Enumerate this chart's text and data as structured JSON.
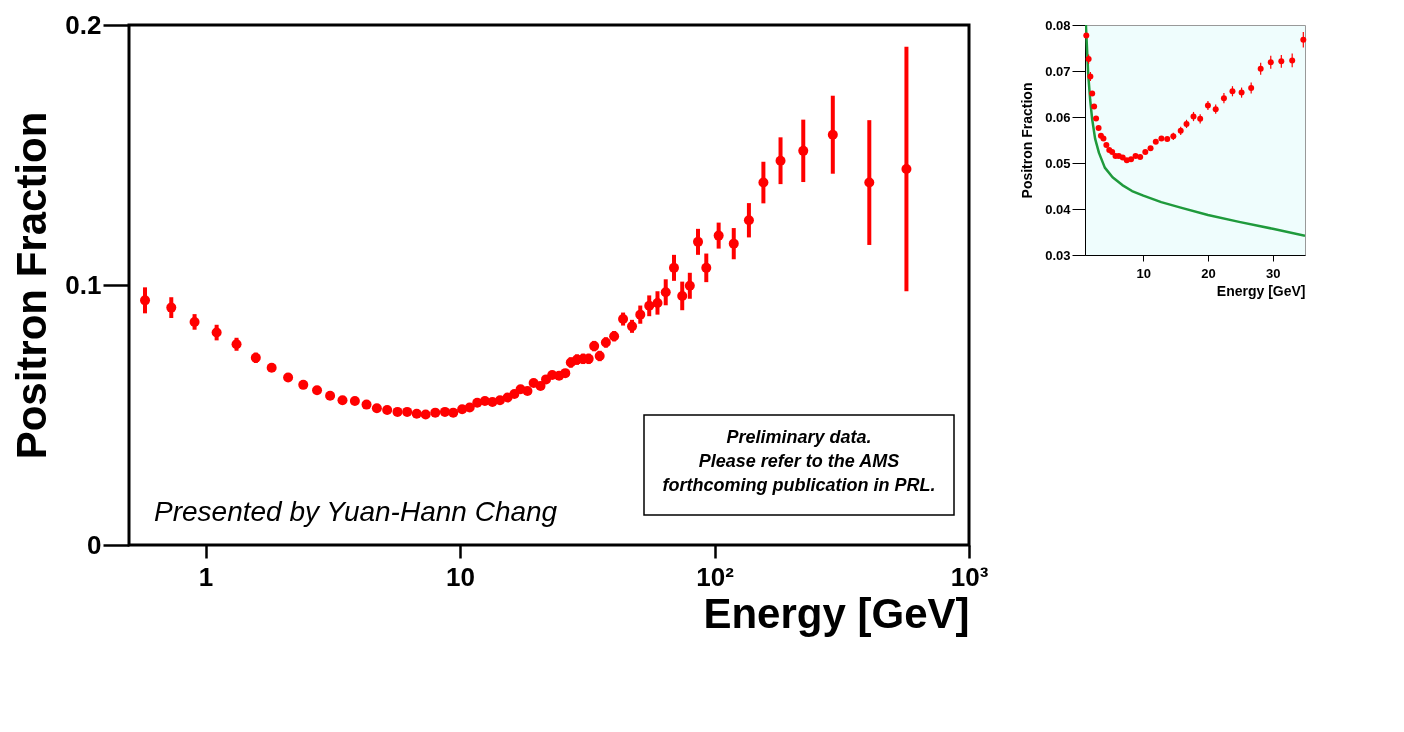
{
  "chart_data": [
    {
      "type": "scatter",
      "xlabel": "Energy [GeV]",
      "ylabel": "Positron Fraction",
      "log": "x",
      "marker": "circle",
      "grid": false,
      "xlim": [
        0.5,
        1000
      ],
      "ylim": [
        0,
        0.2
      ],
      "xticks": [
        1,
        10,
        {
          "value": 100,
          "label": "10²"
        },
        {
          "value": 1000,
          "label": "10³"
        }
      ],
      "yticks": [
        0,
        0.1,
        0.2
      ],
      "series": [
        {
          "type": "scatter",
          "color": "#ff0000",
          "x": [
            0.578,
            0.733,
            0.905,
            1.105,
            1.323,
            1.575,
            1.818,
            2.11,
            2.42,
            2.741,
            3.085,
            3.451,
            3.86,
            4.29,
            4.71,
            5.17,
            5.677,
            6.195,
            6.755,
            7.325,
            7.99,
            8.72,
            9.4,
            10.19,
            10.91,
            11.68,
            12.52,
            13.4,
            14.35,
            15.37,
            16.35,
            17.29,
            18.4,
            19.46,
            20.71,
            21.77,
            23.02,
            24.5,
            25.91,
            27.23,
            28.81,
            30.46,
            32.02,
            33.65,
            35.37,
            37.41,
            40.31,
            43.71,
            47.4,
            51.07,
            55.38,
            59.68,
            64.3,
            69.28,
            74.65,
            79.96,
            86.12,
            92.81,
            103.8,
            119.0,
            136.5,
            155.6,
            181.7,
            223.2,
            291.6,
            405.7,
            567.7
          ],
          "values": [
            0.0941,
            0.0913,
            0.0858,
            0.0817,
            0.0772,
            0.072,
            0.0682,
            0.0644,
            0.0616,
            0.0595,
            0.0574,
            0.0557,
            0.0554,
            0.054,
            0.0526,
            0.0519,
            0.0512,
            0.0512,
            0.0505,
            0.0502,
            0.0509,
            0.0512,
            0.0509,
            0.0522,
            0.0529,
            0.0547,
            0.0554,
            0.055,
            0.0557,
            0.0567,
            0.0581,
            0.0599,
            0.0592,
            0.0623,
            0.0612,
            0.0637,
            0.0654,
            0.0651,
            0.0661,
            0.0702,
            0.0713,
            0.0716,
            0.0716,
            0.0765,
            0.0727,
            0.0779,
            0.0803,
            0.0869,
            0.0841,
            0.0886,
            0.092,
            0.0931,
            0.0972,
            0.1066,
            0.0958,
            0.0997,
            0.1166,
            0.1066,
            0.119,
            0.1159,
            0.1249,
            0.1394,
            0.1478,
            0.1516,
            0.1578,
            0.1394,
            0.1446
          ],
          "errors": [
            0.005,
            0.004,
            0.003,
            0.003,
            0.0025,
            0.002,
            null,
            null,
            null,
            null,
            null,
            null,
            null,
            null,
            null,
            null,
            null,
            null,
            null,
            null,
            null,
            null,
            null,
            null,
            null,
            null,
            null,
            null,
            null,
            null,
            null,
            null,
            null,
            null,
            null,
            null,
            null,
            null,
            null,
            0.002,
            0.002,
            0.002,
            0.002,
            0.002,
            0.002,
            0.002,
            0.002,
            0.0025,
            0.0025,
            0.0035,
            0.004,
            0.0045,
            0.005,
            0.005,
            0.0055,
            0.005,
            0.005,
            0.0055,
            0.005,
            0.006,
            0.0066,
            0.008,
            0.009,
            0.012,
            0.015,
            0.024,
            0.047
          ]
        }
      ],
      "annotations": [
        "Presented by Yuan-Hann Chang",
        "Preliminary data.\nPlease refer to the AMS\nforthcoming publication in PRL."
      ]
    },
    {
      "type": "scatter",
      "xlabel": "Energy [GeV]",
      "ylabel": "Positron Fraction",
      "marker": "circle",
      "grid": false,
      "xlim": [
        1,
        35
      ],
      "ylim": [
        0.03,
        0.08
      ],
      "xticks": [
        10,
        20,
        30
      ],
      "yticks": [
        0.03,
        0.04,
        0.05,
        0.06,
        0.07,
        0.08
      ],
      "series": [
        {
          "type": "scatter",
          "color": "#ff0000",
          "x": [
            1.2,
            1.56,
            1.83,
            2.11,
            2.41,
            2.71,
            3.1,
            3.46,
            3.85,
            4.3,
            4.75,
            5.2,
            5.71,
            6.23,
            6.83,
            7.46,
            8.12,
            8.81,
            9.53,
            10.32,
            11.13,
            11.94,
            12.81,
            13.71,
            14.65,
            15.79,
            16.69,
            17.77,
            18.8,
            20.0,
            21.2,
            22.47,
            23.79,
            25.2,
            26.68,
            28.15,
            29.71,
            31.34,
            33.02,
            34.74
          ],
          "values": [
            0.0777,
            0.0726,
            0.0688,
            0.0651,
            0.0623,
            0.0597,
            0.0576,
            0.0559,
            0.0553,
            0.0539,
            0.0528,
            0.0524,
            0.0515,
            0.0515,
            0.0512,
            0.0506,
            0.0508,
            0.0515,
            0.0513,
            0.0524,
            0.0532,
            0.0546,
            0.0553,
            0.0552,
            0.0558,
            0.057,
            0.0585,
            0.0601,
            0.0596,
            0.0625,
            0.0617,
            0.0641,
            0.0656,
            0.0653,
            0.0663,
            0.0705,
            0.0719,
            0.0721,
            0.0723,
            0.0768
          ],
          "errors": [
            null,
            0.001,
            0.001,
            null,
            null,
            null,
            null,
            null,
            null,
            null,
            null,
            null,
            null,
            null,
            null,
            null,
            null,
            null,
            null,
            null,
            null,
            null,
            null,
            null,
            0.0008,
            0.0009,
            0.0009,
            0.001,
            0.001,
            0.001,
            0.001,
            0.0011,
            0.0011,
            0.0011,
            0.0012,
            0.0013,
            0.0014,
            0.0014,
            0.0015,
            0.0017
          ]
        },
        {
          "type": "line",
          "color": "#1f9a3c",
          "marker": "none",
          "line_style": "solid",
          "x": [
            1.14,
            1.5,
            1.8,
            2.11,
            2.56,
            3.16,
            4.06,
            5.26,
            6.77,
            8.27,
            10.02,
            12.78,
            15.79,
            20.0,
            24.81,
            30.02,
            35.0
          ],
          "values": [
            0.08,
            0.0692,
            0.0637,
            0.0595,
            0.0553,
            0.0522,
            0.049,
            0.0469,
            0.0452,
            0.0439,
            0.0429,
            0.0415,
            0.0403,
            0.0387,
            0.0372,
            0.0357,
            0.0342
          ]
        }
      ]
    }
  ]
}
